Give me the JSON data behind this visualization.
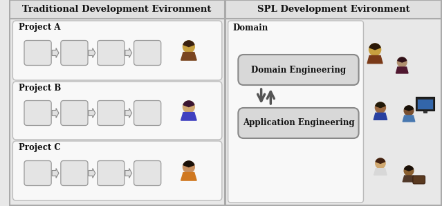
{
  "title_left": "Traditional Development Evironment",
  "title_right": "SPL Development Evironment",
  "proj_labels": [
    "Project A",
    "Project B",
    "Project C"
  ],
  "domain_label": "Domain",
  "domain_eng_label": "Domain Engineering",
  "app_eng_label": "Application Engineering",
  "bg_outer": "#e8e8e8",
  "bg_inner": "#f5f5f5",
  "header_bg": "#e0e0e0",
  "box_fill": "#e0e0e0",
  "box_edge": "#999999",
  "rounded_box_fill": "#d8d8d8",
  "rounded_box_edge": "#999999",
  "panel_edge": "#aaaaaa",
  "title_fontsize": 9.5,
  "proj_fontsize": 8.5,
  "eng_fontsize": 8.5
}
